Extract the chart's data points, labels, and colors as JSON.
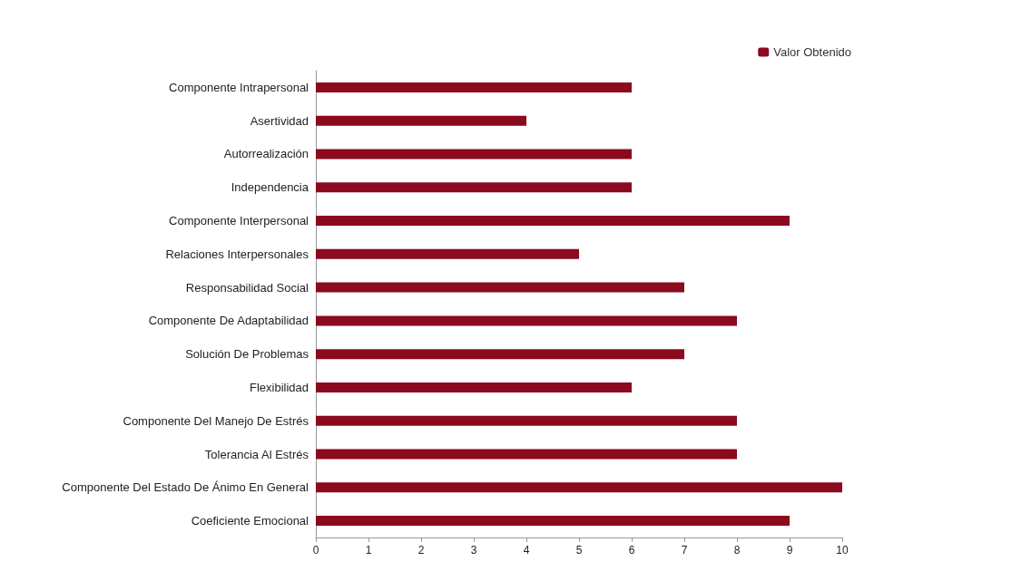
{
  "chart_data": {
    "type": "bar",
    "orientation": "horizontal",
    "categories": [
      "Componente Intrapersonal",
      "Asertividad",
      "Autorrealización",
      "Independencia",
      "Componente Interpersonal",
      "Relaciones Interpersonales",
      "Responsabilidad Social",
      "Componente De Adaptabilidad",
      "Solución De Problemas",
      "Flexibilidad",
      "Componente Del Manejo De Estrés",
      "Tolerancia Al Estrés",
      "Componente Del Estado De Ánimo En General",
      "Coeficiente Emocional"
    ],
    "series": [
      {
        "name": "Valor Obtenido",
        "color": "#8b0a1e",
        "values": [
          6,
          4,
          6,
          6,
          9,
          5,
          7,
          8,
          7,
          6,
          8,
          8,
          10,
          9
        ]
      }
    ],
    "xlim": [
      0,
      10
    ],
    "xticks": [
      0,
      1,
      2,
      3,
      4,
      5,
      6,
      7,
      8,
      9,
      10
    ],
    "grid": false,
    "legend": "top right"
  }
}
